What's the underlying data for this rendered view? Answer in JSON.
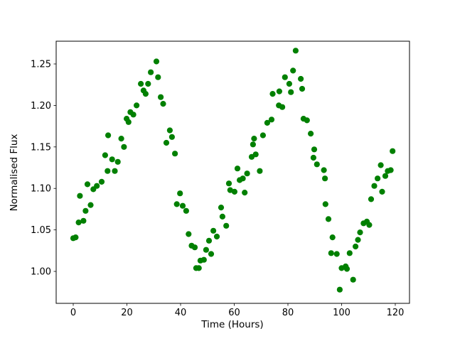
{
  "figure": {
    "background": "#ffffff"
  },
  "chart_data": {
    "type": "scatter",
    "title": "",
    "xlabel": "Time (Hours)",
    "ylabel": "Normalised Flux",
    "marker": {
      "shape": "circle",
      "color": "#008000",
      "radius_px": 4.1
    },
    "xlim": [
      -6.36,
      125.3
    ],
    "ylim": [
      0.9615,
      1.2774
    ],
    "grid": false,
    "legend": "none",
    "xticks": [
      0,
      20,
      40,
      60,
      80,
      100,
      120
    ],
    "xtick_labels": [
      "0",
      "20",
      "40",
      "60",
      "80",
      "100",
      "120"
    ],
    "yticks": [
      1.0,
      1.05,
      1.1,
      1.15,
      1.2,
      1.25
    ],
    "ytick_labels": [
      "1.00",
      "1.05",
      "1.10",
      "1.15",
      "1.20",
      "1.25"
    ],
    "points": [
      [
        0.0,
        1.04
      ],
      [
        0.9,
        1.041
      ],
      [
        2.0,
        1.059
      ],
      [
        2.5,
        1.091
      ],
      [
        3.8,
        1.061
      ],
      [
        4.6,
        1.073
      ],
      [
        5.3,
        1.105
      ],
      [
        6.5,
        1.08
      ],
      [
        7.5,
        1.099
      ],
      [
        8.8,
        1.103
      ],
      [
        10.6,
        1.108
      ],
      [
        11.9,
        1.14
      ],
      [
        12.8,
        1.121
      ],
      [
        13.0,
        1.164
      ],
      [
        14.5,
        1.135
      ],
      [
        15.5,
        1.121
      ],
      [
        16.6,
        1.132
      ],
      [
        17.9,
        1.16
      ],
      [
        18.9,
        1.15
      ],
      [
        19.9,
        1.184
      ],
      [
        20.6,
        1.18
      ],
      [
        21.3,
        1.192
      ],
      [
        22.4,
        1.189
      ],
      [
        23.6,
        1.2
      ],
      [
        25.2,
        1.226
      ],
      [
        26.2,
        1.218
      ],
      [
        27.0,
        1.214
      ],
      [
        27.9,
        1.226
      ],
      [
        28.9,
        1.24
      ],
      [
        31.0,
        1.253
      ],
      [
        31.6,
        1.234
      ],
      [
        32.6,
        1.21
      ],
      [
        33.5,
        1.202
      ],
      [
        34.7,
        1.155
      ],
      [
        36.0,
        1.17
      ],
      [
        36.8,
        1.162
      ],
      [
        37.9,
        1.142
      ],
      [
        38.6,
        1.081
      ],
      [
        39.8,
        1.094
      ],
      [
        40.8,
        1.079
      ],
      [
        42.1,
        1.073
      ],
      [
        43.0,
        1.045
      ],
      [
        44.1,
        1.031
      ],
      [
        45.3,
        1.029
      ],
      [
        45.8,
        1.004
      ],
      [
        46.8,
        1.004
      ],
      [
        47.4,
        1.013
      ],
      [
        48.7,
        1.014
      ],
      [
        49.5,
        1.026
      ],
      [
        50.6,
        1.037
      ],
      [
        51.4,
        1.021
      ],
      [
        52.2,
        1.049
      ],
      [
        53.5,
        1.042
      ],
      [
        55.1,
        1.077
      ],
      [
        55.6,
        1.066
      ],
      [
        57.0,
        1.055
      ],
      [
        58.0,
        1.106
      ],
      [
        58.5,
        1.098
      ],
      [
        60.1,
        1.096
      ],
      [
        61.2,
        1.124
      ],
      [
        62.0,
        1.11
      ],
      [
        63.2,
        1.112
      ],
      [
        63.9,
        1.095
      ],
      [
        64.8,
        1.118
      ],
      [
        66.5,
        1.138
      ],
      [
        67.0,
        1.153
      ],
      [
        67.4,
        1.16
      ],
      [
        68.0,
        1.141
      ],
      [
        69.5,
        1.121
      ],
      [
        70.7,
        1.164
      ],
      [
        72.3,
        1.179
      ],
      [
        73.9,
        1.183
      ],
      [
        74.3,
        1.214
      ],
      [
        76.6,
        1.2
      ],
      [
        76.8,
        1.217
      ],
      [
        77.9,
        1.198
      ],
      [
        78.9,
        1.234
      ],
      [
        80.5,
        1.226
      ],
      [
        81.1,
        1.216
      ],
      [
        81.9,
        1.242
      ],
      [
        82.9,
        1.266
      ],
      [
        84.8,
        1.232
      ],
      [
        85.3,
        1.22
      ],
      [
        85.8,
        1.184
      ],
      [
        87.1,
        1.182
      ],
      [
        88.5,
        1.166
      ],
      [
        89.5,
        1.137
      ],
      [
        89.8,
        1.147
      ],
      [
        90.8,
        1.129
      ],
      [
        93.4,
        1.122
      ],
      [
        93.8,
        1.112
      ],
      [
        94.0,
        1.081
      ],
      [
        95.1,
        1.063
      ],
      [
        96.1,
        1.022
      ],
      [
        96.6,
        1.041
      ],
      [
        98.2,
        1.021
      ],
      [
        99.3,
        0.978
      ],
      [
        100.0,
        1.004
      ],
      [
        101.5,
        1.006
      ],
      [
        102.0,
        1.003
      ],
      [
        103.0,
        1.022
      ],
      [
        104.3,
        0.99
      ],
      [
        105.2,
        1.03
      ],
      [
        106.1,
        1.038
      ],
      [
        106.9,
        1.047
      ],
      [
        108.2,
        1.058
      ],
      [
        109.4,
        1.06
      ],
      [
        110.3,
        1.056
      ],
      [
        111.0,
        1.087
      ],
      [
        112.2,
        1.103
      ],
      [
        113.4,
        1.112
      ],
      [
        114.6,
        1.128
      ],
      [
        115.1,
        1.096
      ],
      [
        116.3,
        1.115
      ],
      [
        117.2,
        1.121
      ],
      [
        118.3,
        1.122
      ],
      [
        119.0,
        1.145
      ]
    ]
  }
}
